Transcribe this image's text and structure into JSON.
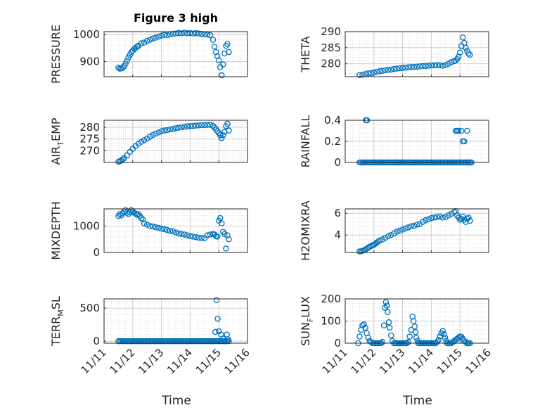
{
  "figure": {
    "title": "Figure 3 high",
    "xlabel": "Time",
    "marker_color": "#0072bd",
    "grid": true,
    "minor_grid": true
  },
  "chart_data": [
    {
      "type": "scatter",
      "id": "pressure",
      "ylabel": "PRESSURE",
      "xlim": [
        11,
        16
      ],
      "ylim": [
        845,
        1010
      ],
      "xticks": [],
      "yticks": [
        900,
        1000
      ],
      "x": [
        11.5,
        11.55,
        11.6,
        11.65,
        11.7,
        11.75,
        11.8,
        11.85,
        11.9,
        11.95,
        12.0,
        12.05,
        12.1,
        12.15,
        12.2,
        12.3,
        12.4,
        12.5,
        12.6,
        12.7,
        12.8,
        12.9,
        13.0,
        13.1,
        13.2,
        13.3,
        13.4,
        13.5,
        13.6,
        13.7,
        13.8,
        13.9,
        14.0,
        14.1,
        14.2,
        14.3,
        14.4,
        14.5,
        14.6,
        14.7,
        14.8,
        14.85,
        14.9,
        14.95,
        15.0,
        15.05,
        15.1,
        15.15,
        15.2,
        15.25,
        15.3,
        15.35
      ],
      "y": [
        878,
        874,
        875,
        878,
        883,
        893,
        903,
        915,
        925,
        935,
        940,
        946,
        950,
        955,
        958,
        967,
        970,
        976,
        980,
        985,
        988,
        992,
        995,
        998,
        997,
        1000,
        1002,
        1003,
        1005,
        1004,
        1006,
        1004,
        1005,
        1003,
        1005,
        1003,
        1002,
        1000,
        999,
        997,
        980,
        955,
        935,
        920,
        905,
        880,
        850,
        890,
        930,
        958,
        965,
        935
      ]
    },
    {
      "type": "scatter",
      "id": "theta",
      "ylabel": "THETA",
      "xlim": [
        11,
        16
      ],
      "ylim": [
        276,
        290
      ],
      "xticks": [],
      "yticks": [
        280,
        285,
        290
      ],
      "x": [
        11.5,
        11.6,
        11.7,
        11.8,
        11.9,
        12.0,
        12.1,
        12.2,
        12.3,
        12.4,
        12.5,
        12.6,
        12.7,
        12.8,
        12.9,
        13.0,
        13.1,
        13.2,
        13.3,
        13.4,
        13.5,
        13.6,
        13.7,
        13.8,
        13.9,
        14.0,
        14.1,
        14.2,
        14.3,
        14.4,
        14.5,
        14.6,
        14.7,
        14.8,
        14.85,
        14.9,
        14.95,
        15.0,
        15.05,
        15.1,
        15.15,
        15.2,
        15.25,
        15.3,
        15.35
      ],
      "y": [
        276.5,
        276.6,
        276.8,
        277.0,
        277.1,
        277.3,
        277.5,
        277.7,
        277.8,
        278.0,
        278.1,
        278.2,
        278.4,
        278.5,
        278.6,
        278.7,
        278.8,
        278.9,
        279.0,
        279.0,
        279.1,
        279.2,
        279.3,
        279.3,
        279.4,
        279.5,
        279.5,
        279.6,
        279.5,
        279.4,
        279.6,
        280.0,
        280.5,
        280.8,
        281.0,
        281.5,
        282.2,
        283.5,
        285.5,
        288.2,
        286.5,
        285.0,
        284.0,
        283.2,
        282.8
      ]
    },
    {
      "type": "scatter",
      "id": "air_temp",
      "ylabel": "AIR_TEMP",
      "ylabel_sub": "T",
      "ylabel_pre": "AIR",
      "ylabel_post": "EMP",
      "xlim": [
        11,
        16
      ],
      "ylim": [
        265,
        283
      ],
      "xticks": [],
      "yticks": [
        270,
        275,
        280
      ],
      "x": [
        11.5,
        11.55,
        11.6,
        11.65,
        11.7,
        11.8,
        11.9,
        12.0,
        12.1,
        12.2,
        12.3,
        12.4,
        12.5,
        12.6,
        12.7,
        12.8,
        12.9,
        13.0,
        13.1,
        13.2,
        13.3,
        13.4,
        13.5,
        13.6,
        13.7,
        13.8,
        13.9,
        14.0,
        14.1,
        14.2,
        14.3,
        14.4,
        14.5,
        14.6,
        14.7,
        14.8,
        14.85,
        14.9,
        14.95,
        15.0,
        15.05,
        15.1,
        15.15,
        15.2,
        15.25,
        15.3,
        15.35
      ],
      "y": [
        265.3,
        265.5,
        265.8,
        266.3,
        266.8,
        268.0,
        269.5,
        270.8,
        272.0,
        273.0,
        273.8,
        274.5,
        275.2,
        276.0,
        276.7,
        277.3,
        277.8,
        278.3,
        278.6,
        278.8,
        279.1,
        279.3,
        279.6,
        279.8,
        280.0,
        280.2,
        280.4,
        280.5,
        280.6,
        280.7,
        280.8,
        280.9,
        280.9,
        281.0,
        281.0,
        280.6,
        279.9,
        279.2,
        278.4,
        277.6,
        276.6,
        275.4,
        276.6,
        278.0,
        280.5,
        281.5,
        278.6
      ]
    },
    {
      "type": "scatter",
      "id": "rainfall",
      "ylabel": "RAINFALL",
      "xlim": [
        11,
        16
      ],
      "ylim": [
        0,
        0.4
      ],
      "xticks": [],
      "yticks": [
        0,
        0.2,
        0.4
      ],
      "x": [
        11.5,
        11.55,
        11.6,
        11.65,
        11.7,
        11.75,
        11.8,
        11.85,
        11.9,
        11.95,
        12.0,
        12.05,
        12.1,
        12.15,
        12.2,
        12.25,
        12.3,
        12.35,
        12.4,
        12.45,
        12.5,
        12.55,
        12.6,
        12.65,
        12.7,
        12.75,
        12.8,
        12.85,
        12.9,
        12.95,
        13.0,
        13.05,
        13.1,
        13.15,
        13.2,
        13.25,
        13.3,
        13.35,
        13.4,
        13.45,
        13.5,
        13.55,
        13.6,
        13.65,
        13.7,
        13.75,
        13.8,
        13.85,
        13.9,
        13.95,
        14.0,
        14.05,
        14.1,
        14.15,
        14.2,
        14.25,
        14.3,
        14.35,
        14.4,
        14.45,
        14.5,
        14.55,
        14.6,
        14.65,
        14.7,
        14.75,
        14.8,
        14.85,
        14.9,
        14.95,
        15.0,
        15.05,
        15.1,
        15.15,
        15.2,
        15.25,
        15.3,
        15.35,
        11.72,
        11.76,
        14.85,
        14.9,
        14.95,
        15.05,
        15.1,
        15.15,
        15.25,
        15.3,
        15.35,
        15.4
      ],
      "y": [
        0,
        0,
        0,
        0,
        0,
        0,
        0,
        0,
        0,
        0,
        0,
        0,
        0,
        0,
        0,
        0,
        0,
        0,
        0,
        0,
        0,
        0,
        0,
        0,
        0,
        0,
        0,
        0,
        0,
        0,
        0,
        0,
        0,
        0,
        0,
        0,
        0,
        0,
        0,
        0,
        0,
        0,
        0,
        0,
        0,
        0,
        0,
        0,
        0,
        0,
        0,
        0,
        0,
        0,
        0,
        0,
        0,
        0,
        0,
        0,
        0,
        0,
        0,
        0,
        0,
        0,
        0,
        0,
        0,
        0,
        0,
        0,
        0,
        0,
        0,
        0,
        0,
        0,
        0.4,
        0.4,
        0.3,
        0.3,
        0.3,
        0.3,
        0.2,
        0.2,
        0.3,
        0,
        0,
        0
      ]
    },
    {
      "type": "scatter",
      "id": "mixdepth",
      "ylabel": "MIXDEPTH",
      "xlim": [
        11,
        16
      ],
      "ylim": [
        0,
        1650
      ],
      "xticks": [],
      "yticks": [
        0,
        1000
      ],
      "x": [
        11.5,
        11.55,
        11.6,
        11.65,
        11.7,
        11.75,
        11.8,
        11.85,
        11.9,
        11.95,
        12.0,
        12.05,
        12.1,
        12.15,
        12.2,
        12.25,
        12.3,
        12.35,
        12.4,
        12.5,
        12.6,
        12.7,
        12.8,
        12.9,
        13.0,
        13.1,
        13.2,
        13.3,
        13.4,
        13.5,
        13.6,
        13.7,
        13.8,
        13.9,
        14.0,
        14.1,
        14.2,
        14.3,
        14.4,
        14.5,
        14.6,
        14.7,
        14.8,
        14.85,
        14.9,
        14.95,
        15.0,
        15.05,
        15.1,
        15.15,
        15.2,
        15.25,
        15.3,
        15.35
      ],
      "y": [
        1380,
        1450,
        1400,
        1480,
        1550,
        1600,
        1500,
        1450,
        1520,
        1600,
        1550,
        1500,
        1470,
        1420,
        1450,
        1380,
        1300,
        1250,
        1100,
        1050,
        1000,
        980,
        950,
        930,
        900,
        880,
        850,
        820,
        800,
        760,
        720,
        700,
        680,
        650,
        620,
        600,
        580,
        560,
        550,
        540,
        650,
        680,
        700,
        680,
        620,
        600,
        1200,
        1300,
        1100,
        780,
        700,
        150,
        650,
        500
      ]
    },
    {
      "type": "scatter",
      "id": "h2omixra",
      "ylabel": "H2OMIXRA",
      "xlim": [
        11,
        16
      ],
      "ylim": [
        2.4,
        6.4
      ],
      "xticks": [],
      "yticks": [
        4,
        6
      ],
      "x": [
        11.5,
        11.55,
        11.6,
        11.65,
        11.7,
        11.75,
        11.8,
        11.85,
        11.9,
        11.95,
        12.0,
        12.05,
        12.1,
        12.15,
        12.2,
        12.3,
        12.4,
        12.5,
        12.6,
        12.7,
        12.8,
        12.9,
        13.0,
        13.1,
        13.2,
        13.3,
        13.4,
        13.5,
        13.6,
        13.7,
        13.8,
        13.9,
        14.0,
        14.1,
        14.2,
        14.3,
        14.4,
        14.5,
        14.6,
        14.7,
        14.8,
        14.85,
        14.9,
        14.95,
        15.0,
        15.05,
        15.1,
        15.15,
        15.2,
        15.25,
        15.3,
        15.35
      ],
      "y": [
        2.5,
        2.5,
        2.55,
        2.6,
        2.65,
        2.75,
        2.85,
        2.9,
        3.0,
        3.05,
        3.1,
        3.2,
        3.3,
        3.4,
        3.5,
        3.6,
        3.75,
        3.9,
        4.0,
        4.15,
        4.3,
        4.4,
        4.5,
        4.6,
        4.7,
        4.8,
        4.85,
        4.95,
        5.0,
        5.2,
        5.35,
        5.45,
        5.55,
        5.6,
        5.65,
        5.7,
        5.6,
        5.65,
        5.8,
        5.95,
        6.1,
        6.2,
        5.8,
        5.6,
        5.4,
        5.5,
        5.7,
        5.4,
        5.2,
        5.5,
        5.6,
        5.3
      ]
    },
    {
      "type": "scatter",
      "id": "terr_msl",
      "ylabel": "TERR_MSL",
      "ylabel_pre": "TERR",
      "ylabel_sub": "M",
      "ylabel_post": "SL",
      "xlim": [
        11,
        16
      ],
      "ylim": [
        -30,
        640
      ],
      "xticks": [
        "11/11",
        "11/12",
        "11/13",
        "11/14",
        "11/15",
        "11/16"
      ],
      "yticks": [
        0,
        500
      ],
      "x": [
        11.5,
        11.55,
        11.6,
        11.65,
        11.7,
        11.75,
        11.8,
        11.85,
        11.9,
        11.95,
        12.0,
        12.05,
        12.1,
        12.15,
        12.2,
        12.25,
        12.3,
        12.35,
        12.4,
        12.45,
        12.5,
        12.55,
        12.6,
        12.65,
        12.7,
        12.75,
        12.8,
        12.85,
        12.9,
        12.95,
        13.0,
        13.05,
        13.1,
        13.15,
        13.2,
        13.25,
        13.3,
        13.35,
        13.4,
        13.45,
        13.5,
        13.55,
        13.6,
        13.65,
        13.7,
        13.75,
        13.8,
        13.85,
        13.9,
        13.95,
        14.0,
        14.05,
        14.1,
        14.15,
        14.2,
        14.25,
        14.3,
        14.35,
        14.4,
        14.45,
        14.5,
        14.55,
        14.6,
        14.65,
        14.7,
        14.75,
        14.8,
        14.85,
        14.9,
        14.95,
        15.0,
        15.05,
        15.1,
        15.15,
        15.2,
        15.25,
        15.3,
        15.35,
        14.88,
        14.92,
        14.96,
        15.0,
        15.08,
        15.15,
        15.2,
        15.28,
        15.32
      ],
      "y": [
        0,
        0,
        0,
        0,
        0,
        0,
        0,
        0,
        0,
        0,
        0,
        0,
        0,
        0,
        0,
        0,
        0,
        0,
        0,
        0,
        0,
        0,
        0,
        0,
        0,
        0,
        0,
        0,
        0,
        0,
        0,
        0,
        0,
        0,
        0,
        0,
        0,
        0,
        0,
        0,
        0,
        0,
        0,
        0,
        0,
        0,
        0,
        0,
        0,
        0,
        0,
        0,
        0,
        0,
        0,
        0,
        0,
        0,
        0,
        0,
        0,
        0,
        0,
        0,
        0,
        0,
        0,
        0,
        0,
        0,
        0,
        0,
        0,
        0,
        0,
        0,
        0,
        0,
        140,
        620,
        340,
        150,
        100,
        40,
        0,
        100,
        30
      ]
    },
    {
      "type": "scatter",
      "id": "sun_flux",
      "ylabel": "SUN_FLUX",
      "ylabel_pre": "SUN",
      "ylabel_sub": "F",
      "ylabel_post": "LUX",
      "xlim": [
        11,
        16
      ],
      "ylim": [
        0,
        200
      ],
      "xticks": [
        "11/11",
        "11/12",
        "11/13",
        "11/14",
        "11/15",
        "11/16"
      ],
      "yticks": [
        0,
        100,
        200
      ],
      "x": [
        11.45,
        11.5,
        11.55,
        11.6,
        11.65,
        11.7,
        11.75,
        11.8,
        11.85,
        11.9,
        11.95,
        12.0,
        12.05,
        12.1,
        12.15,
        12.2,
        12.25,
        12.3,
        12.35,
        12.38,
        12.42,
        12.45,
        12.48,
        12.52,
        12.55,
        12.6,
        12.65,
        12.7,
        12.75,
        12.8,
        12.85,
        12.9,
        12.95,
        13.0,
        13.05,
        13.1,
        13.15,
        13.2,
        13.25,
        13.3,
        13.35,
        13.38,
        13.42,
        13.45,
        13.48,
        13.52,
        13.55,
        13.6,
        13.65,
        13.7,
        13.75,
        13.8,
        13.85,
        13.9,
        13.95,
        14.0,
        14.05,
        14.1,
        14.15,
        14.2,
        14.25,
        14.3,
        14.35,
        14.4,
        14.45,
        14.48,
        14.52,
        14.55,
        14.6,
        14.65,
        14.7,
        14.75,
        14.8,
        14.85,
        14.9,
        14.95,
        15.0,
        15.05,
        15.1,
        15.15,
        15.2,
        15.25,
        15.3,
        15.35
      ],
      "y": [
        0,
        30,
        60,
        80,
        85,
        70,
        45,
        25,
        10,
        5,
        0,
        0,
        0,
        0,
        0,
        0,
        0,
        5,
        80,
        160,
        185,
        170,
        140,
        95,
        70,
        35,
        10,
        0,
        0,
        0,
        0,
        0,
        0,
        0,
        0,
        0,
        0,
        5,
        30,
        60,
        120,
        100,
        75,
        50,
        25,
        10,
        0,
        0,
        0,
        0,
        0,
        0,
        0,
        0,
        0,
        0,
        0,
        0,
        0,
        5,
        15,
        30,
        45,
        55,
        40,
        25,
        10,
        0,
        0,
        0,
        0,
        5,
        10,
        15,
        20,
        25,
        30,
        28,
        20,
        10,
        5,
        0,
        0,
        0
      ]
    }
  ]
}
